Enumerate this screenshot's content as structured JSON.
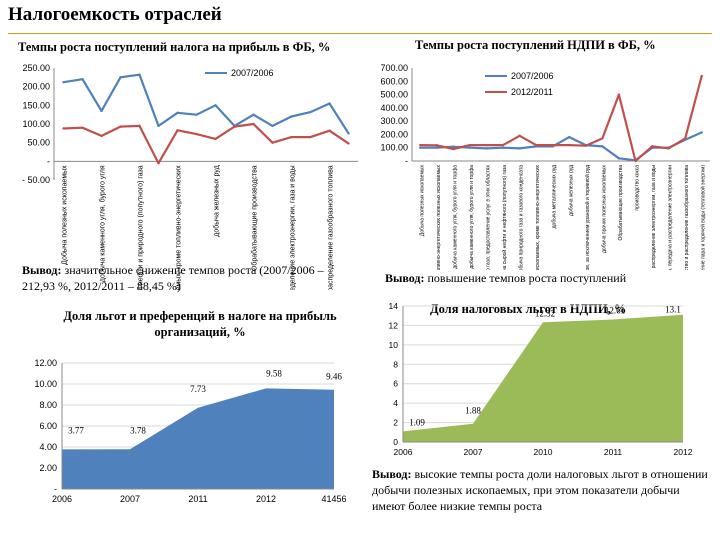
{
  "page_title": "Налогоемкость отраслей",
  "conclusions": {
    "c1_label": "Вывод:",
    "c1_text": "значительное снижение темпов роста (2007/2006 – 212,93 %, 2012/2011 – 88,45 %)",
    "c2_label": "Вывод:",
    "c2_text": "повышение темпов роста поступлений",
    "c3_label": "Вывод:",
    "c3_text": "высокие темпы роста доли налоговых льгот в отношении добычи полезных ископаемых, при этом показатели добычи имеют более низкие темпы роста"
  },
  "colors": {
    "blue": "#4f81bd",
    "red": "#c0504d",
    "green": "#9bbb59"
  },
  "chart_data": [
    {
      "type": "line",
      "title": "Темпы роста поступлений налога на прибыль в ФБ, %",
      "categories": [
        "Добыча полезных ископаемых",
        "",
        "добыча каменного угля, бурого угля",
        "",
        "добыча сырой нефти и природного (попутного) газа",
        "",
        "добыча полезных ископаемых, кроме топливно-энергетических",
        "",
        "добыча железных руд",
        "",
        "Обрабатывающие производства",
        "",
        "Производство и распределение электроэнергии, газа и воды",
        "",
        "производство и распределение газообразного топлива",
        ""
      ],
      "series": [
        {
          "name": "2007/2006",
          "color": "#4f81bd",
          "values": [
            212,
            220,
            135,
            225,
            232,
            95,
            130,
            125,
            150,
            95,
            125,
            95,
            120,
            132,
            155,
            75
          ]
        },
        {
          "name": "",
          "color": "#c0504d",
          "values": [
            88,
            90,
            68,
            93,
            95,
            -5,
            83,
            73,
            60,
            93,
            100,
            50,
            65,
            65,
            82,
            48
          ]
        }
      ],
      "ylim": [
        -50,
        250
      ],
      "yticks": [
        "250.00",
        "200.00",
        "150.00",
        "100.00",
        "50.00",
        "-",
        "- 50.00"
      ],
      "legend": "top-center"
    },
    {
      "type": "line",
      "title": "Темпы роста поступлений НДПИ в ФБ, %",
      "categories": [
        "Добыча полезных ископаемых",
        "добыча топливно-энергетических полезных ископаемых",
        "добыча каменного угля, бурого угля и торфа",
        "добыча каменного угля, бурого угля и торфа",
        "добыча сырой нефти и природного газа; предоставление услуг в этих областях",
        "добыча сырой нефти и нефтяного (попутного) газа",
        "добыча природного газа и газового конденсата",
        "добыча полезных ископаемых, кроме топливно-энергетических",
        "добыча металлических руд",
        "добыча железных руд",
        "добыча руд цветных металлов, за исключением урановой и ториевой руд",
        "добыча прочих полезных ископаемых",
        "Обрабатывающие производства",
        "производство кокса",
        "Производство и распределение электроэнергии, газа и воды",
        "производство, передача и распределение электроэнергии",
        "производство и распределение газообразного топлива",
        "производство, передача и распределение пара и горячей воды (тепловой энергии)"
      ],
      "series": [
        {
          "name": "2007/2006",
          "color": "#4f81bd",
          "values": [
            100,
            100,
            108,
            100,
            95,
            100,
            95,
            110,
            110,
            180,
            120,
            110,
            20,
            5,
            100,
            100,
            160,
            215
          ]
        },
        {
          "name": "2012/2011",
          "color": "#c0504d",
          "values": [
            120,
            118,
            90,
            120,
            120,
            120,
            190,
            120,
            120,
            120,
            115,
            170,
            500,
            0,
            110,
            95,
            170,
            640
          ]
        }
      ],
      "ylim": [
        0,
        700
      ],
      "yticks": [
        "700.00",
        "600.00",
        "500.00",
        "400.00",
        "300.00",
        "200.00",
        "100.00",
        "-"
      ],
      "legend": "top-right"
    },
    {
      "type": "area",
      "title": "Доля льгот и преференций в налоге на прибыль организаций, %",
      "categories": [
        "2006",
        "2007",
        "2011",
        "2012",
        "41456"
      ],
      "values": [
        3.77,
        3.78,
        7.73,
        9.58,
        9.46
      ],
      "labels": [
        "3.77",
        "3.78",
        "7.73",
        "9.58",
        "9.46"
      ],
      "ylim": [
        0,
        12
      ],
      "yticks": [
        "12.00",
        "10.00",
        "8.00",
        "6.00",
        "4.00",
        "2.00",
        "-"
      ],
      "color": "#4f81bd"
    },
    {
      "type": "area",
      "title": "Доля налоговых льгот в НДПИ, %",
      "categories": [
        "2006",
        "2007",
        "2010",
        "2011",
        "2012"
      ],
      "values": [
        1.09,
        1.88,
        12.32,
        12.61,
        13.1
      ],
      "labels": [
        "1.09",
        "1.88",
        "12.32",
        "12.61",
        "13.1"
      ],
      "ylim": [
        0,
        14
      ],
      "yticks": [
        "14",
        "12",
        "10",
        "8",
        "6",
        "4",
        "2",
        "0"
      ],
      "color": "#9bbb59"
    }
  ]
}
